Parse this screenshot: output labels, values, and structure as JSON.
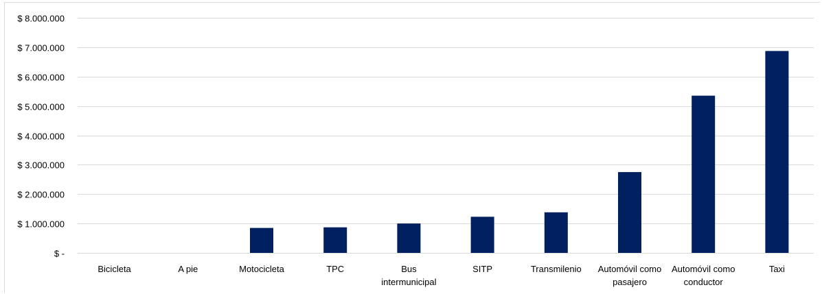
{
  "chart_data": {
    "type": "bar",
    "title": "",
    "xlabel": "",
    "ylabel": "",
    "categories": [
      "Bicicleta",
      "A pie",
      "Motocicleta",
      "TPC",
      "Bus intermunicipal",
      "SITP",
      "Transmilenio",
      "Automóvil como pasajero",
      "Automóvil como conductor",
      "Taxi"
    ],
    "category_lines": [
      [
        "Bicicleta"
      ],
      [
        "A pie"
      ],
      [
        "Motocicleta"
      ],
      [
        "TPC"
      ],
      [
        "Bus",
        "intermunicipal"
      ],
      [
        "SITP"
      ],
      [
        "Transmilenio"
      ],
      [
        "Automóvil como",
        "pasajero"
      ],
      [
        "Automóvil como",
        "conductor"
      ],
      [
        "Taxi"
      ]
    ],
    "values": [
      0,
      0,
      850000,
      870000,
      1000000,
      1230000,
      1380000,
      2750000,
      5350000,
      6870000
    ],
    "ylim": [
      0,
      8000000
    ],
    "yticks": [
      0,
      1000000,
      2000000,
      3000000,
      4000000,
      5000000,
      6000000,
      7000000,
      8000000
    ],
    "ytick_labels": [
      "$ -",
      "$ 1.000.000",
      "$ 2.000.000",
      "$ 3.000.000",
      "$ 4.000.000",
      "$ 5.000.000",
      "$ 6.000.000",
      "$ 7.000.000",
      "$ 8.000.000"
    ],
    "grid": true,
    "legend": "none",
    "bar_color": "#002060",
    "grid_color": "#d9d9d9"
  }
}
